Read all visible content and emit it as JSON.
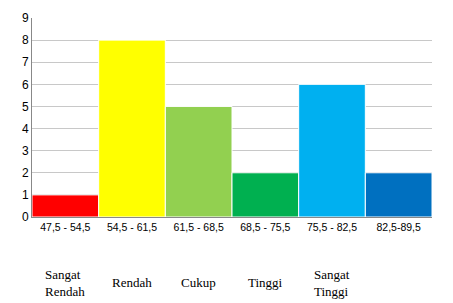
{
  "chart_data": {
    "type": "bar",
    "categories": [
      "47,5 - 54,5",
      "54,5 - 61,5",
      "61,5 - 68,5",
      "68,5 - 75,5",
      "75,5 - 82,5",
      "82,5-89,5"
    ],
    "values": [
      1,
      8,
      5,
      2,
      6,
      2
    ],
    "colors": [
      "#ff0000",
      "#ffff00",
      "#92d050",
      "#00b050",
      "#00b0f0",
      "#0070c0"
    ],
    "ylim": [
      0,
      9
    ],
    "yticks": [
      0,
      1,
      2,
      3,
      4,
      5,
      6,
      7,
      8,
      9
    ],
    "grid": true,
    "annotations": [
      "Sangat Rendah",
      "Rendah",
      "Cukup",
      "Tinggi",
      "Sangat Tinggi"
    ]
  }
}
